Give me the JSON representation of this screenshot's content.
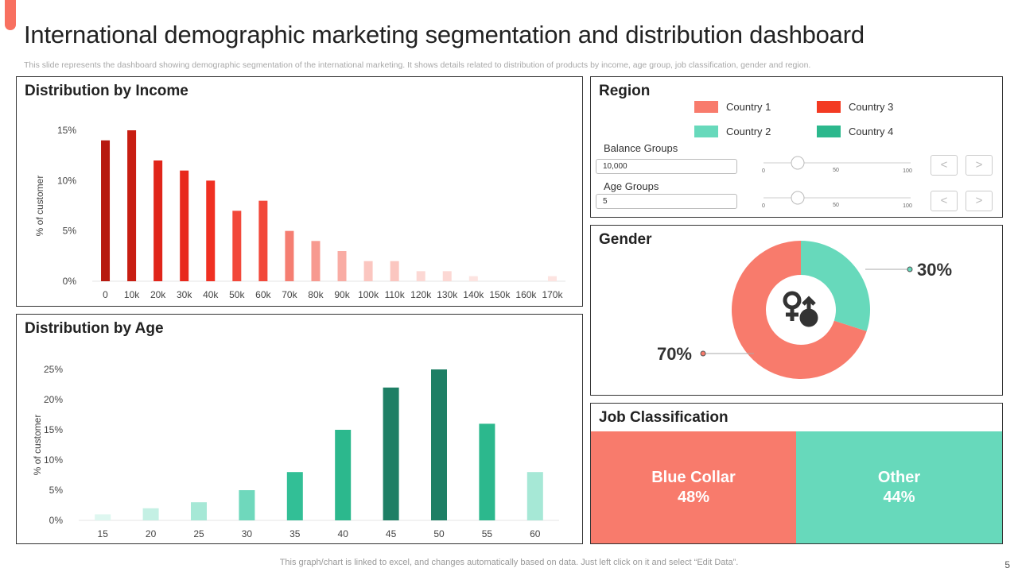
{
  "page": {
    "title": "International demographic marketing segmentation and distribution dashboard",
    "subtitle": "This slide represents the dashboard showing demographic segmentation of the international marketing. It shows details related to distribution of products by income, age group, job classification, gender and region.",
    "footer": "This graph/chart is linked to excel,  and changes automatically based on data. Just left click on it and select “Edit Data”.",
    "page_number": "5",
    "accent_color": "#f87060"
  },
  "income": {
    "title": "Distribution by Income",
    "ylabel": "% of customer"
  },
  "age": {
    "title": "Distribution by Age",
    "ylabel": "% of customer"
  },
  "region": {
    "title": "Region",
    "legend": [
      {
        "label": "Country 1",
        "color": "#f87b6c"
      },
      {
        "label": "Country 3",
        "color": "#f33a22"
      },
      {
        "label": "Country 2",
        "color": "#67d9bb"
      },
      {
        "label": "Country 4",
        "color": "#2cb88d"
      }
    ],
    "balance_groups": {
      "label": "Balance Groups",
      "value": "10,000",
      "slider_min": "0",
      "slider_mid": "50",
      "slider_max": "100",
      "slider_value": 20
    },
    "age_groups": {
      "label": "Age Groups",
      "value": "5",
      "slider_min": "0",
      "slider_mid": "50",
      "slider_max": "100",
      "slider_value": 20
    },
    "prev_icon": "chevron-left-icon",
    "next_icon": "chevron-right-icon",
    "prev_glyph": "<",
    "next_glyph": ">"
  },
  "gender": {
    "title": "Gender",
    "icon": "gender-symbols-icon",
    "segments": [
      {
        "label": "30%",
        "value": 30,
        "color": "#67d9bb"
      },
      {
        "label": "70%",
        "value": 70,
        "color": "#f87b6c"
      }
    ]
  },
  "job": {
    "title": "Job Classification",
    "blocks": [
      {
        "name": "Blue Collar",
        "pct": "48%",
        "value": 48,
        "color": "#f87b6c"
      },
      {
        "name": "Other",
        "pct": "44%",
        "value": 44,
        "color": "#67d9bb"
      }
    ]
  },
  "chart_data": [
    {
      "type": "bar",
      "title": "Distribution by Income",
      "ylabel": "% of customer",
      "ylim": [
        0,
        15
      ],
      "yticks": [
        "0%",
        "5%",
        "10%",
        "15%"
      ],
      "categories": [
        "0",
        "10k",
        "20k",
        "30k",
        "40k",
        "50k",
        "60k",
        "70k",
        "80k",
        "90k",
        "100k",
        "110k",
        "120k",
        "130k",
        "140k",
        "150k",
        "160k",
        "170k"
      ],
      "values": [
        14,
        15,
        12,
        11,
        10,
        7,
        8,
        5,
        4,
        3,
        2,
        2,
        1,
        1,
        0.5,
        0,
        0,
        0.5
      ],
      "colors": [
        "#b71a10",
        "#c81e12",
        "#e0251a",
        "#e8291c",
        "#f03022",
        "#f2483a",
        "#f2483a",
        "#f57e72",
        "#f79a90",
        "#f9aca4",
        "#fbc6c0",
        "#fbc6c0",
        "#fcd8d4",
        "#fcd8d4",
        "#fde4e1",
        "#fde4e1",
        "#fde4e1",
        "#fde4e1"
      ]
    },
    {
      "type": "bar",
      "title": "Distribution by Age",
      "ylabel": "% of customer",
      "ylim": [
        0,
        25
      ],
      "yticks": [
        "0%",
        "5%",
        "10%",
        "15%",
        "20%",
        "25%"
      ],
      "categories": [
        "15",
        "20",
        "25",
        "30",
        "35",
        "40",
        "45",
        "50",
        "55",
        "60"
      ],
      "values": [
        1,
        2,
        3,
        5,
        8,
        15,
        22,
        25,
        16,
        8
      ],
      "colors": [
        "#def7f0",
        "#c4f0e4",
        "#a6e8d6",
        "#6fd8bc",
        "#32bf96",
        "#2cb88d",
        "#1e7f65",
        "#1e7f65",
        "#2cb88d",
        "#a6e8d6"
      ]
    },
    {
      "type": "pie",
      "title": "Gender",
      "labels": [
        "30%",
        "70%"
      ],
      "values": [
        30,
        70
      ],
      "colors": [
        "#67d9bb",
        "#f87b6c"
      ]
    }
  ]
}
